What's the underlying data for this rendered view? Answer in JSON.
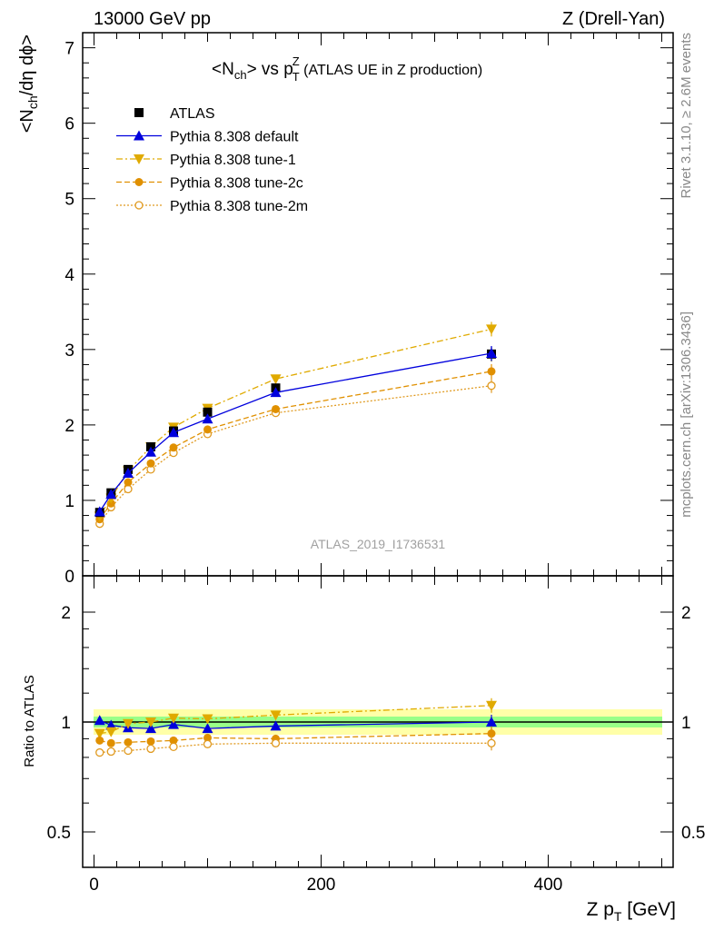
{
  "header": {
    "left": "13000 GeV pp",
    "right": "Z (Drell-Yan)"
  },
  "side_labels": {
    "rivet": "Rivet 3.1.10, ≥ 2.6M events",
    "mcplots": "mcplots.cern.ch [arXiv:1306.3436]"
  },
  "watermark": "ATLAS_2019_I1736531",
  "colors": {
    "atlas": "#000000",
    "default": "#0000dd",
    "tune1": "#e0aa00",
    "tune2c": "#e09000",
    "tune2m": "#e09a20",
    "band_inner": "#7fff7f",
    "band_outer": "#ffff99"
  },
  "chart_data": [
    {
      "type": "line",
      "title_parts": {
        "a": "<N",
        "a_sub": "ch",
        "b": "> vs p",
        "b_sup": "Z",
        "b_sub": "T",
        "c": " (ATLAS UE in Z production)"
      },
      "ylabel_parts": {
        "a": "<N",
        "a_sub": "ch",
        "b": "/dη dϕ>"
      },
      "xlim": [
        -10,
        510
      ],
      "ylim": [
        0,
        7.2
      ],
      "yticks": [
        "0",
        "1",
        "2",
        "3",
        "4",
        "5",
        "6",
        "7"
      ],
      "x": [
        5,
        15,
        30,
        50,
        70,
        100,
        160,
        350
      ],
      "series": [
        {
          "name": "ATLAS",
          "key": "atlas",
          "marker": "square",
          "values": [
            0.84,
            1.1,
            1.41,
            1.71,
            1.92,
            2.17,
            2.49,
            2.94
          ]
        },
        {
          "name": "Pythia 8.308 default",
          "key": "default",
          "marker": "triangle-up",
          "line": "solid",
          "values": [
            0.85,
            1.08,
            1.36,
            1.64,
            1.9,
            2.08,
            2.43,
            2.95
          ]
        },
        {
          "name": "Pythia 8.308 tune-1",
          "key": "tune1",
          "marker": "triangle-down",
          "line": "dashdot",
          "values": [
            0.79,
            1.03,
            1.39,
            1.71,
            1.97,
            2.22,
            2.61,
            3.27
          ]
        },
        {
          "name": "Pythia 8.308 tune-2c",
          "key": "tune2c",
          "marker": "circle",
          "line": "dashed",
          "values": [
            0.75,
            0.96,
            1.24,
            1.49,
            1.7,
            1.94,
            2.21,
            2.71
          ]
        },
        {
          "name": "Pythia 8.308 tune-2m",
          "key": "tune2m",
          "marker": "circle-open",
          "line": "dotted",
          "values": [
            0.69,
            0.91,
            1.15,
            1.41,
            1.63,
            1.88,
            2.16,
            2.52
          ]
        }
      ]
    },
    {
      "type": "line",
      "ylabel": "Ratio to ATLAS",
      "xlabel_parts": {
        "a": "Z p",
        "a_sub": "T",
        "b": " [GeV]"
      },
      "xlim": [
        -10,
        510
      ],
      "ylim": [
        0.35,
        2.3
      ],
      "yticks": [
        "0.5",
        "1",
        "2"
      ],
      "xticks": [
        "0",
        "200",
        "400"
      ],
      "x": [
        5,
        15,
        30,
        50,
        70,
        100,
        160,
        350
      ],
      "series": [
        {
          "name": "Pythia 8.308 default",
          "key": "default",
          "marker": "triangle-up",
          "line": "solid",
          "values": [
            1.01,
            0.98,
            0.965,
            0.96,
            0.985,
            0.96,
            0.975,
            1.0
          ]
        },
        {
          "name": "Pythia 8.308 tune-1",
          "key": "tune1",
          "marker": "triangle-down",
          "line": "dashdot",
          "values": [
            0.93,
            0.94,
            0.99,
            1.0,
            1.025,
            1.02,
            1.045,
            1.11
          ]
        },
        {
          "name": "Pythia 8.308 tune-2c",
          "key": "tune2c",
          "marker": "circle",
          "line": "dashed",
          "values": [
            0.89,
            0.875,
            0.88,
            0.885,
            0.89,
            0.905,
            0.9,
            0.93
          ]
        },
        {
          "name": "Pythia 8.308 tune-2m",
          "key": "tune2m",
          "marker": "circle-open",
          "line": "dotted",
          "values": [
            0.825,
            0.83,
            0.835,
            0.845,
            0.855,
            0.87,
            0.875,
            0.875
          ]
        }
      ]
    }
  ]
}
